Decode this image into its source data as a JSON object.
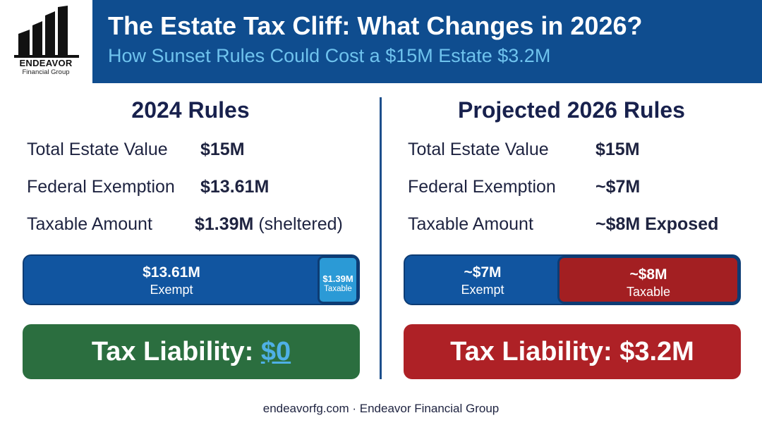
{
  "brand": {
    "name": "ENDEAVOR",
    "tagline": "Financial Group",
    "icon": "building-skyline-icon",
    "color": "#0f4d8f"
  },
  "header": {
    "title": "The Estate Tax Cliff: What Changes in 2026?",
    "subtitle": "How Sunset Rules Could Cost a $15M Estate $3.2M"
  },
  "left": {
    "heading": "2024 Rules",
    "rows": [
      {
        "label": "Total Estate Value",
        "value": "$15M",
        "note": ""
      },
      {
        "label": "Federal Exemption",
        "value": "$13.61M",
        "note": ""
      },
      {
        "label": "Taxable Amount",
        "value": "$1.39M",
        "note": "(sheltered)"
      }
    ],
    "bar": {
      "exempt_amount": "$13.61M",
      "exempt_caption": "Exempt",
      "taxable_amount": "$1.39M",
      "taxable_caption": "Taxable",
      "taxable_fraction": 0.0927
    },
    "liability_label": "Tax Liability:",
    "liability_value": "$0",
    "liability_color": "#2b6e3f"
  },
  "right": {
    "heading": "Projected 2026 Rules",
    "rows": [
      {
        "label": "Total Estate Value",
        "value": "$15M"
      },
      {
        "label": "Federal Exemption",
        "value": "~$7M"
      },
      {
        "label": "Taxable Amount",
        "value": "~$8M Exposed"
      }
    ],
    "bar": {
      "exempt_amount": "~$7M",
      "exempt_caption": "Exempt",
      "taxable_amount": "~$8M",
      "taxable_caption": "Taxable",
      "taxable_fraction": 0.5333
    },
    "liability_label": "Tax Liability:",
    "liability_value": "$3.2M",
    "liability_color": "#ae2126"
  },
  "footer": {
    "text": "endeavorfg.com · Endeavor Financial Group"
  }
}
